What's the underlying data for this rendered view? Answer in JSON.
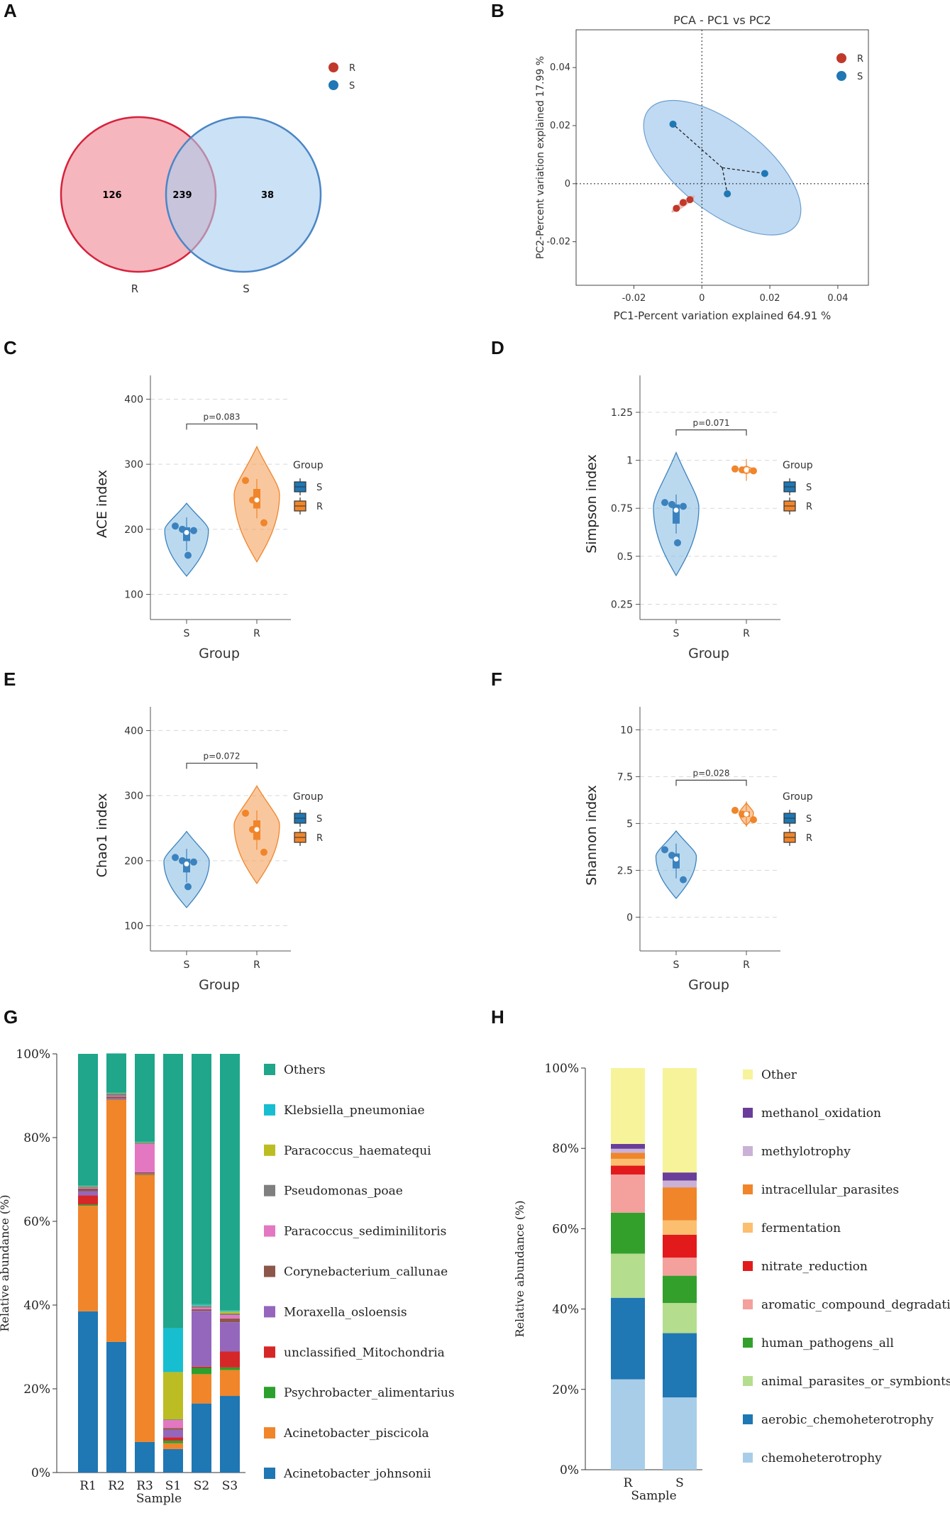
{
  "panels": {
    "A": "A",
    "B": "B",
    "C": "C",
    "D": "D",
    "E": "E",
    "F": "F",
    "G": "G",
    "H": "H"
  },
  "colors": {
    "R": "#c0392b",
    "S": "#1f77b4",
    "Rviolin": "#f5a25d",
    "Sviolin": "#8dbfe3"
  },
  "chart_data": [
    {
      "panel": "A",
      "type": "venn",
      "sets": [
        "R",
        "S"
      ],
      "only_R": 126,
      "shared": 239,
      "only_S": 38,
      "legend": [
        "R",
        "S"
      ]
    },
    {
      "panel": "B",
      "type": "scatter",
      "title": "PCA - PC1 vs PC2",
      "xlabel": "PC1-Percent variation explained 64.91 %",
      "ylabel": "PC2-Percent variation explained 17.99 %",
      "xticks": [
        "-0.02",
        "0",
        "0.02",
        "0.04"
      ],
      "yticks": [
        "0.04",
        "0.02",
        "0",
        "-0.02"
      ],
      "xlim": [
        -0.037,
        0.049
      ],
      "ylim": [
        -0.035,
        0.053
      ],
      "legend": [
        "R",
        "S"
      ],
      "series": [
        {
          "name": "R",
          "points": [
            [
              -0.0075,
              -0.0085
            ],
            [
              -0.0055,
              -0.0065
            ],
            [
              -0.0035,
              -0.0055
            ]
          ]
        },
        {
          "name": "S",
          "points": [
            [
              -0.0085,
              0.0205
            ],
            [
              0.0075,
              -0.0035
            ],
            [
              0.0185,
              0.0035
            ]
          ],
          "centroid": [
            0.006,
            0.0055
          ]
        }
      ]
    },
    {
      "panel": "C",
      "type": "violin",
      "ylabel": "ACE index",
      "xlabel": "Group",
      "categories": [
        "S",
        "R"
      ],
      "yticks": [
        "400",
        "300",
        "200",
        "100"
      ],
      "ylim": [
        70,
        430
      ],
      "pvalue": "p=0.083",
      "legend_title": "Group",
      "legend": [
        "S",
        "R"
      ],
      "groups": [
        {
          "name": "S",
          "points": [
            205,
            200,
            198,
            160
          ],
          "median": 195,
          "q1": 182,
          "q3": 203,
          "min": 128,
          "max": 240
        },
        {
          "name": "R",
          "points": [
            275,
            245,
            210
          ],
          "median": 245,
          "q1": 232,
          "q3": 262,
          "min": 150,
          "max": 327
        }
      ]
    },
    {
      "panel": "D",
      "type": "violin",
      "ylabel": "Simpson index",
      "xlabel": "Group",
      "categories": [
        "S",
        "R"
      ],
      "yticks": [
        "1.25",
        "1",
        "0.75",
        "0.5",
        "0.25"
      ],
      "ylim": [
        0.2,
        1.42
      ],
      "pvalue": "p=0.071",
      "legend_title": "Group",
      "legend": [
        "S",
        "R"
      ],
      "groups": [
        {
          "name": "S",
          "points": [
            0.78,
            0.77,
            0.76,
            0.57
          ],
          "median": 0.74,
          "q1": 0.67,
          "q3": 0.77,
          "min": 0.4,
          "max": 1.04
        },
        {
          "name": "R",
          "points": [
            0.955,
            0.95,
            0.945
          ],
          "median": 0.95,
          "q1": 0.945,
          "q3": 0.955,
          "min": 0.93,
          "max": 0.97
        }
      ]
    },
    {
      "panel": "E",
      "type": "violin",
      "ylabel": "Chao1 index",
      "xlabel": "Group",
      "categories": [
        "S",
        "R"
      ],
      "yticks": [
        "400",
        "300",
        "200",
        "100"
      ],
      "ylim": [
        70,
        430
      ],
      "pvalue": "p=0.072",
      "legend_title": "Group",
      "legend": [
        "S",
        "R"
      ],
      "groups": [
        {
          "name": "S",
          "points": [
            205,
            200,
            198,
            160
          ],
          "median": 195,
          "q1": 182,
          "q3": 203,
          "min": 128,
          "max": 245
        },
        {
          "name": "R",
          "points": [
            273,
            248,
            213
          ],
          "median": 248,
          "q1": 232,
          "q3": 262,
          "min": 165,
          "max": 315
        }
      ]
    },
    {
      "panel": "F",
      "type": "violin",
      "ylabel": "Shannon index",
      "xlabel": "Group",
      "categories": [
        "S",
        "R"
      ],
      "yticks": [
        "10",
        "7.5",
        "5",
        "2.5",
        "0"
      ],
      "ylim": [
        -1.5,
        11
      ],
      "pvalue": "p=0.028",
      "legend_title": "Group",
      "legend": [
        "S",
        "R"
      ],
      "groups": [
        {
          "name": "S",
          "points": [
            3.6,
            3.3,
            2.0
          ],
          "median": 3.1,
          "q1": 2.6,
          "q3": 3.4,
          "min": 1.0,
          "max": 4.6
        },
        {
          "name": "R",
          "points": [
            5.7,
            5.5,
            5.2
          ],
          "median": 5.5,
          "q1": 5.35,
          "q3": 5.65,
          "min": 4.9,
          "max": 6.1
        }
      ]
    },
    {
      "panel": "G",
      "type": "bar",
      "stacked": true,
      "ylabel": "Relative abundance (%)",
      "xlabel": "Sample",
      "categories": [
        "R1",
        "R2",
        "R3",
        "S1",
        "S2",
        "S3"
      ],
      "yticks": [
        "0%",
        "20%",
        "40%",
        "60%",
        "80%",
        "100%"
      ],
      "ylim": [
        0,
        100
      ],
      "series": [
        {
          "name": "Acinetobacter_johnsonii",
          "color": "#1f77b4",
          "values": [
            38.5,
            31.2,
            7.3,
            5.6,
            16.5,
            18.3
          ]
        },
        {
          "name": "Acinetobacter_piscicola",
          "color": "#f0852a",
          "values": [
            25.2,
            57.8,
            63.8,
            1.4,
            7.0,
            6.2
          ]
        },
        {
          "name": "Psychrobacter_alimentarius",
          "color": "#2ca02c",
          "values": [
            0.3,
            0.1,
            0.1,
            0.6,
            1.5,
            0.6
          ]
        },
        {
          "name": "unclassified_Mitochondria",
          "color": "#d62728",
          "values": [
            2.2,
            0.1,
            0.1,
            0.8,
            0.3,
            3.8
          ]
        },
        {
          "name": "Moraxella_osloensis",
          "color": "#9467bd",
          "values": [
            1.0,
            0.2,
            0.1,
            1.8,
            13.3,
            7.0
          ]
        },
        {
          "name": "Corynebacterium_callunae",
          "color": "#8c564b",
          "values": [
            0.6,
            0.4,
            0.3,
            0.4,
            0.4,
            0.9
          ]
        },
        {
          "name": "Paracoccus_sediminilitoris",
          "color": "#e377c2",
          "values": [
            0.2,
            0.2,
            6.8,
            1.9,
            0.4,
            0.8
          ]
        },
        {
          "name": "Pseudomonas_poae",
          "color": "#7f7f7f",
          "values": [
            0.3,
            0.5,
            0.3,
            0.2,
            0.4,
            0.4
          ]
        },
        {
          "name": "Paracoccus_haematequi",
          "color": "#bcbd22",
          "values": [
            0.1,
            0.1,
            0.1,
            11.3,
            0.1,
            0.5
          ]
        },
        {
          "name": "Klebsiella_pneumoniae",
          "color": "#17becf",
          "values": [
            0.1,
            0.1,
            0.1,
            10.5,
            0.3,
            0.3
          ]
        },
        {
          "name": "Others",
          "color": "#1fa68b",
          "values": [
            31.5,
            9.4,
            21.0,
            65.5,
            59.8,
            61.2
          ]
        }
      ],
      "legend_order": [
        "Others",
        "Klebsiella_pneumoniae",
        "Paracoccus_haematequi",
        "Pseudomonas_poae",
        "Paracoccus_sediminilitoris",
        "Corynebacterium_callunae",
        "Moraxella_osloensis",
        "unclassified_Mitochondria",
        "Psychrobacter_alimentarius",
        "Acinetobacter_piscicola",
        "Acinetobacter_johnsonii"
      ]
    },
    {
      "panel": "H",
      "type": "bar",
      "stacked": true,
      "ylabel": "Relative abundance (%)",
      "xlabel": "Sample",
      "categories": [
        "R",
        "S"
      ],
      "yticks": [
        "0%",
        "20%",
        "40%",
        "60%",
        "80%",
        "100%"
      ],
      "ylim": [
        0,
        100
      ],
      "series": [
        {
          "name": "chemoheterotrophy",
          "color": "#a8cde8",
          "values": [
            22.5,
            18.0
          ]
        },
        {
          "name": "aerobic_chemoheterotrophy",
          "color": "#1f77b4",
          "values": [
            20.3,
            16.0
          ]
        },
        {
          "name": "animal_parasites_or_symbionts",
          "color": "#b5dd8e",
          "values": [
            11.0,
            7.5
          ]
        },
        {
          "name": "human_pathogens_all",
          "color": "#33a02c",
          "values": [
            10.2,
            6.8
          ]
        },
        {
          "name": "aromatic_compound_degradation",
          "color": "#f4a09c",
          "values": [
            9.5,
            4.5
          ]
        },
        {
          "name": "nitrate_reduction",
          "color": "#e31a1c",
          "values": [
            2.2,
            5.7
          ]
        },
        {
          "name": "fermentation",
          "color": "#fbbf6f",
          "values": [
            1.7,
            3.6
          ]
        },
        {
          "name": "intracellular_parasites",
          "color": "#f0852a",
          "values": [
            1.5,
            8.2
          ]
        },
        {
          "name": "methylotrophy",
          "color": "#cab2d6",
          "values": [
            1.0,
            1.7
          ]
        },
        {
          "name": "methanol_oxidation",
          "color": "#6a3d9a",
          "values": [
            1.2,
            2.0
          ]
        },
        {
          "name": "Other",
          "color": "#f7f39b",
          "values": [
            18.9,
            26.0
          ]
        }
      ],
      "legend_order": [
        "Other",
        "methanol_oxidation",
        "methylotrophy",
        "intracellular_parasites",
        "fermentation",
        "nitrate_reduction",
        "aromatic_compound_degradation",
        "human_pathogens_all",
        "animal_parasites_or_symbionts",
        "aerobic_chemoheterotrophy",
        "chemoheterotrophy"
      ]
    }
  ]
}
